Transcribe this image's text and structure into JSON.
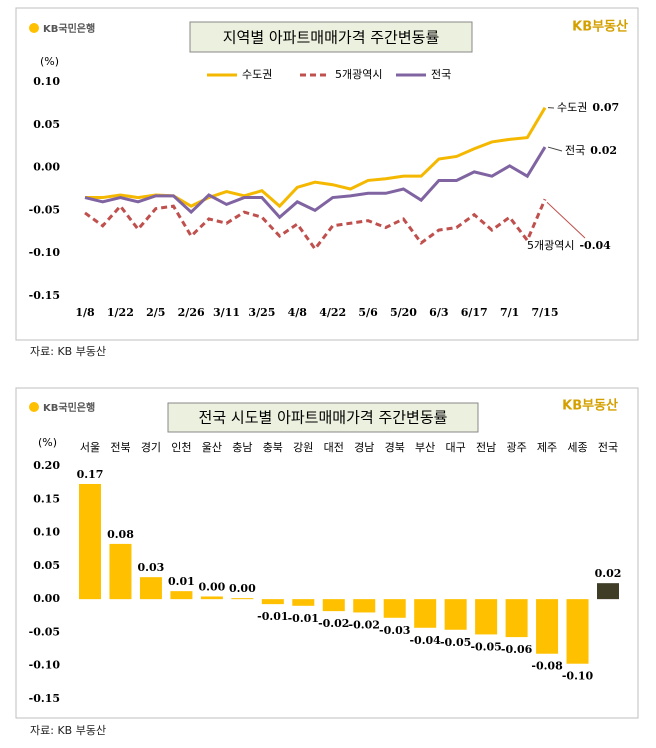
{
  "page": {
    "bank_logo": "KB국민은행",
    "brand_logo": "KB부동산",
    "source": "자료: KB 부동산"
  },
  "chart_data": [
    {
      "type": "line",
      "title": "지역별 아파트매매가격 주간변동률",
      "y_label": "(%)",
      "categories": [
        "1/8",
        null,
        "1/22",
        null,
        "2/5",
        null,
        "2/26",
        null,
        "3/11",
        null,
        "3/25",
        null,
        "4/8",
        null,
        "4/22",
        null,
        "5/6",
        null,
        "5/20",
        null,
        "6/3",
        null,
        "6/17",
        null,
        "7/1",
        null,
        "7/15"
      ],
      "ylim": [
        -0.15,
        0.1
      ],
      "yticks": [
        {
          "value": 0.1,
          "label": "0.10"
        },
        {
          "value": 0.05,
          "label": "0.05"
        },
        {
          "value": 0,
          "label": "0.00"
        },
        {
          "value": -0.05,
          "label": "-0.05"
        },
        {
          "value": -0.1,
          "label": "-0.10"
        },
        {
          "value": -0.15,
          "label": "-0.15"
        }
      ],
      "grid": false,
      "series": [
        {
          "name": "수도권",
          "color": "#f5b800",
          "dashed": false,
          "values": [
            -0.035,
            -0.035,
            -0.032,
            -0.035,
            -0.032,
            -0.033,
            -0.045,
            -0.035,
            -0.028,
            -0.033,
            -0.027,
            -0.045,
            -0.023,
            -0.017,
            -0.02,
            -0.025,
            -0.015,
            -0.013,
            -0.01,
            -0.01,
            0.01,
            0.013,
            0.022,
            0.03,
            0.033,
            0.035,
            0.07
          ],
          "value_labels": [
            null,
            null,
            null,
            null,
            null,
            null,
            null,
            null,
            null,
            null,
            null,
            null,
            null,
            null,
            null,
            null,
            null,
            null,
            null,
            null,
            null,
            null,
            null,
            null,
            null,
            null,
            "0.07"
          ]
        },
        {
          "name": "5개광역시",
          "color": "#c0504d",
          "dashed": true,
          "values": [
            -0.053,
            -0.068,
            -0.045,
            -0.072,
            -0.048,
            -0.045,
            -0.08,
            -0.06,
            -0.065,
            -0.052,
            -0.058,
            -0.08,
            -0.066,
            -0.095,
            -0.068,
            -0.065,
            -0.062,
            -0.07,
            -0.06,
            -0.088,
            -0.073,
            -0.07,
            -0.055,
            -0.073,
            -0.058,
            -0.085,
            -0.037
          ],
          "value_labels": [
            null,
            null,
            null,
            null,
            null,
            null,
            null,
            null,
            null,
            null,
            null,
            null,
            null,
            null,
            null,
            null,
            null,
            null,
            null,
            null,
            null,
            null,
            null,
            null,
            null,
            null,
            "-0.04"
          ]
        },
        {
          "name": "전국",
          "color": "#8064a2",
          "dashed": false,
          "values": [
            -0.035,
            -0.04,
            -0.035,
            -0.04,
            -0.033,
            -0.033,
            -0.052,
            -0.032,
            -0.043,
            -0.035,
            -0.035,
            -0.058,
            -0.04,
            -0.05,
            -0.035,
            -0.033,
            -0.03,
            -0.03,
            -0.025,
            -0.038,
            -0.015,
            -0.015,
            -0.005,
            -0.01,
            0.002,
            -0.01,
            0.024
          ],
          "value_labels": [
            null,
            null,
            null,
            null,
            null,
            null,
            null,
            null,
            null,
            null,
            null,
            null,
            null,
            null,
            null,
            null,
            null,
            null,
            null,
            null,
            null,
            null,
            null,
            null,
            null,
            null,
            "0.02"
          ]
        }
      ]
    },
    {
      "type": "bar",
      "title": "전국 시도별 아파트매매가격 주간변동률",
      "y_label": "(%)",
      "categories": [
        "서울",
        "전북",
        "경기",
        "인천",
        "울산",
        "충남",
        "충북",
        "강원",
        "대전",
        "경남",
        "경북",
        "부산",
        "대구",
        "전남",
        "광주",
        "제주",
        "세종",
        "전국"
      ],
      "values": [
        0.173,
        0.083,
        0.033,
        0.012,
        0.004,
        0.0015,
        -0.0075,
        -0.01,
        -0.018,
        -0.02,
        -0.028,
        -0.043,
        -0.046,
        -0.053,
        -0.057,
        -0.082,
        -0.097,
        0.024
      ],
      "value_labels": [
        "0.17",
        "0.08",
        "0.03",
        "0.01",
        "0.00",
        "0.00",
        "-0.01",
        "-0.01",
        "-0.02",
        "-0.02",
        "-0.03",
        "-0.04",
        "-0.05",
        "-0.05",
        "-0.06",
        "-0.08",
        "-0.10",
        "0.02"
      ],
      "colors": [
        "#ffc000",
        "#ffc000",
        "#ffc000",
        "#ffc000",
        "#ffc000",
        "#ffc000",
        "#ffc000",
        "#ffc000",
        "#ffc000",
        "#ffc000",
        "#ffc000",
        "#ffc000",
        "#ffc000",
        "#ffc000",
        "#ffc000",
        "#ffc000",
        "#ffc000",
        "#3f3d26"
      ],
      "ylim": [
        -0.15,
        0.2
      ],
      "yticks": [
        {
          "value": 0.2,
          "label": "0.20"
        },
        {
          "value": 0.15,
          "label": "0.15"
        },
        {
          "value": 0.1,
          "label": "0.10"
        },
        {
          "value": 0.05,
          "label": "0.05"
        },
        {
          "value": 0,
          "label": "0.00"
        },
        {
          "value": -0.05,
          "label": "-0.05"
        },
        {
          "value": -0.1,
          "label": "-0.10"
        },
        {
          "value": -0.15,
          "label": "-0.15"
        }
      ],
      "grid": false
    }
  ]
}
